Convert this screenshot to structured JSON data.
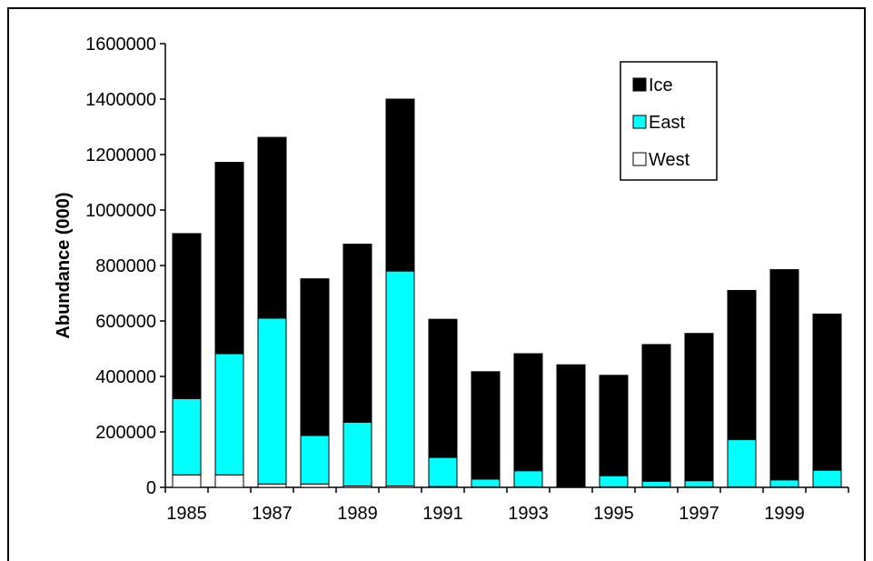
{
  "chart_data": {
    "type": "bar",
    "stacked": true,
    "title": "",
    "xlabel": "",
    "ylabel": "Abundance (000)",
    "ylim": [
      0,
      1600000
    ],
    "yticks": [
      0,
      200000,
      400000,
      600000,
      800000,
      1000000,
      1200000,
      1400000,
      1600000
    ],
    "categories": [
      "1985",
      "1986",
      "1987",
      "1988",
      "1989",
      "1990",
      "1991",
      "1992",
      "1993",
      "1994",
      "1995",
      "1996",
      "1997",
      "1998",
      "1999",
      "2000"
    ],
    "xtick_labels": [
      "1985",
      "",
      "1987",
      "",
      "1989",
      "",
      "1991",
      "",
      "1993",
      "",
      "1995",
      "",
      "1997",
      "",
      "1999",
      ""
    ],
    "grid": false,
    "legend_position": "top-right",
    "series": [
      {
        "name": "West",
        "color": "#ffffff",
        "values": [
          45000,
          45000,
          12000,
          12000,
          5000,
          5000,
          3000,
          2000,
          2000,
          0,
          2000,
          2000,
          2000,
          2000,
          2000,
          2000
        ]
      },
      {
        "name": "East",
        "color": "#00ffff",
        "values": [
          275000,
          437000,
          598000,
          175000,
          230000,
          775000,
          105000,
          28000,
          58000,
          0,
          40000,
          20000,
          22000,
          170000,
          25000,
          60000
        ]
      },
      {
        "name": "Ice",
        "color": "#000000",
        "values": [
          595000,
          690000,
          652000,
          565000,
          642000,
          620000,
          498000,
          387000,
          422000,
          442000,
          362000,
          493000,
          531000,
          538000,
          758000,
          563000
        ]
      }
    ],
    "legend_order": [
      "Ice",
      "East",
      "West"
    ]
  }
}
